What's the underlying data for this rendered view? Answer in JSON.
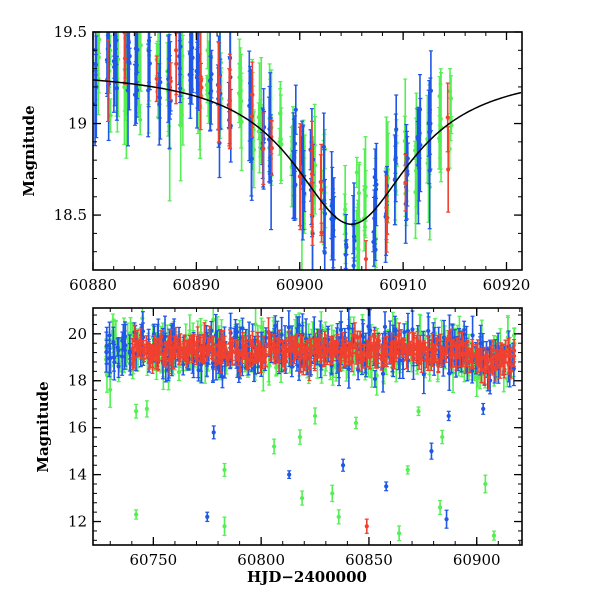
{
  "colors": {
    "green": "#55ee55",
    "blue": "#1f57e6",
    "red": "#f0402f",
    "model": "#000000",
    "axes": "#000000"
  },
  "chart_data": [
    {
      "type": "scatter",
      "title": "",
      "xlabel": "",
      "ylabel": "Magnitude",
      "xlim": [
        60880,
        60921.5
      ],
      "ylim": [
        19.5,
        18.2
      ],
      "y_inverted": true,
      "xticks": [
        60880,
        60890,
        60900,
        60910,
        60920
      ],
      "yticks": [
        18.5,
        19,
        19.5
      ],
      "xtick_labels": [
        "60880",
        "60890",
        "60900",
        "60910",
        "60920"
      ],
      "ytick_labels": [
        "18.5",
        "19",
        "19.5"
      ],
      "grid": false,
      "model_curve": {
        "peak_x": 60905.0,
        "peak_mag": 18.45,
        "baseline_mag": 19.3,
        "width": 7.0
      },
      "series": [
        {
          "color_key": "green",
          "cadence": "nightly",
          "x_range": [
            60880,
            60916.5
          ]
        },
        {
          "color_key": "blue",
          "cadence": "nightly",
          "x_range": [
            60880,
            60913
          ]
        },
        {
          "color_key": "red",
          "cadence": "sparse",
          "x_range": [
            60880,
            60917
          ]
        }
      ]
    },
    {
      "type": "scatter",
      "title": "",
      "xlabel": "HJD−2400000",
      "ylabel": "Magnitude",
      "xlim": [
        60722,
        60921
      ],
      "ylim": [
        21.1,
        11.0
      ],
      "y_inverted": true,
      "xticks": [
        60750,
        60800,
        60850,
        60900
      ],
      "yticks": [
        12,
        14,
        16,
        18,
        20
      ],
      "xtick_labels": [
        "60750",
        "60800",
        "60850",
        "60900"
      ],
      "ytick_labels": [
        "12",
        "14",
        "16",
        "18",
        "20"
      ],
      "grid": false,
      "baseline_mag": 19.3,
      "outliers": [
        {
          "x": 60742,
          "y": 12.3,
          "color_key": "green"
        },
        {
          "x": 60775,
          "y": 12.2,
          "color_key": "blue"
        },
        {
          "x": 60783,
          "y": 11.8,
          "color_key": "green"
        },
        {
          "x": 60783,
          "y": 14.2,
          "color_key": "green"
        },
        {
          "x": 60778,
          "y": 15.8,
          "color_key": "blue"
        },
        {
          "x": 60742,
          "y": 16.7,
          "color_key": "green"
        },
        {
          "x": 60747,
          "y": 16.8,
          "color_key": "green"
        },
        {
          "x": 60806,
          "y": 15.2,
          "color_key": "green"
        },
        {
          "x": 60813,
          "y": 14.0,
          "color_key": "blue"
        },
        {
          "x": 60819,
          "y": 13.0,
          "color_key": "green"
        },
        {
          "x": 60818,
          "y": 15.6,
          "color_key": "green"
        },
        {
          "x": 60825,
          "y": 16.5,
          "color_key": "green"
        },
        {
          "x": 60833,
          "y": 13.2,
          "color_key": "green"
        },
        {
          "x": 60838,
          "y": 14.4,
          "color_key": "blue"
        },
        {
          "x": 60836,
          "y": 12.2,
          "color_key": "green"
        },
        {
          "x": 60844,
          "y": 16.2,
          "color_key": "green"
        },
        {
          "x": 60849,
          "y": 11.8,
          "color_key": "red"
        },
        {
          "x": 60858,
          "y": 13.5,
          "color_key": "blue"
        },
        {
          "x": 60864,
          "y": 11.5,
          "color_key": "green"
        },
        {
          "x": 60868,
          "y": 14.2,
          "color_key": "green"
        },
        {
          "x": 60873,
          "y": 16.7,
          "color_key": "green"
        },
        {
          "x": 60879,
          "y": 15.0,
          "color_key": "blue"
        },
        {
          "x": 60883,
          "y": 12.6,
          "color_key": "green"
        },
        {
          "x": 60884,
          "y": 15.6,
          "color_key": "green"
        },
        {
          "x": 60886,
          "y": 12.1,
          "color_key": "blue"
        },
        {
          "x": 60887,
          "y": 16.5,
          "color_key": "blue"
        },
        {
          "x": 60904,
          "y": 13.6,
          "color_key": "green"
        },
        {
          "x": 60908,
          "y": 11.4,
          "color_key": "green"
        },
        {
          "x": 60903,
          "y": 16.8,
          "color_key": "blue"
        }
      ],
      "series": [
        {
          "color_key": "green",
          "x_range": [
            60728,
            60917
          ]
        },
        {
          "color_key": "blue",
          "x_range": [
            60728,
            60917
          ]
        },
        {
          "color_key": "red",
          "x_range": [
            60740,
            60917
          ]
        }
      ]
    }
  ]
}
